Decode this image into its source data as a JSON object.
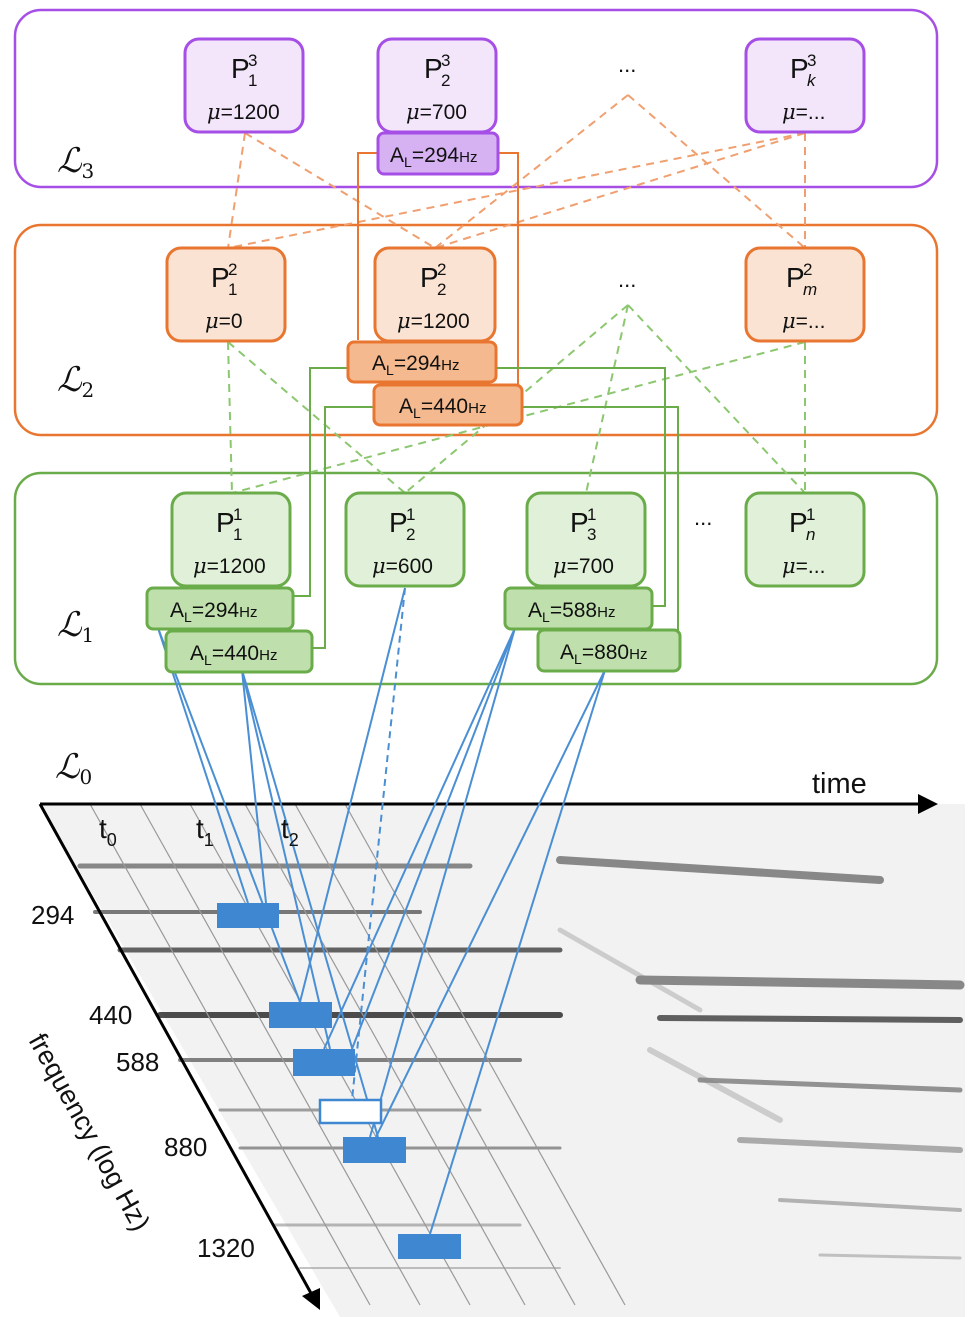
{
  "colors": {
    "purple": "#a64fe6",
    "purple_fill": "#f3e6fb",
    "purple_tag": "#d6b2f2",
    "orange": "#e97630",
    "orange_fill": "#fbe3d3",
    "orange_tag": "#f5b98f",
    "green": "#6aab4a",
    "green_fill": "#e1f0d8",
    "green_tag": "#bfe0ad",
    "blue": "#4a8fd4",
    "block": "#3f87d0"
  },
  "layers": {
    "l3": {
      "name": "ℒ",
      "index": "3",
      "patterns": [
        {
          "base": "P",
          "sub": "1",
          "sup": "3",
          "mu": "=1200"
        },
        {
          "base": "P",
          "sub": "2",
          "sup": "3",
          "mu": "=700"
        },
        {
          "base": "P",
          "sub": "k",
          "sup": "3",
          "mu": "=..."
        }
      ],
      "ellipsis": "...",
      "tags": [
        {
          "prefix": "A",
          "sub": "L",
          "value": "=294",
          "unit": "Hz"
        }
      ]
    },
    "l2": {
      "name": "ℒ",
      "index": "2",
      "patterns": [
        {
          "base": "P",
          "sub": "1",
          "sup": "2",
          "mu": "=0"
        },
        {
          "base": "P",
          "sub": "2",
          "sup": "2",
          "mu": "=1200"
        },
        {
          "base": "P",
          "sub": "m",
          "sup": "2",
          "mu": "=..."
        }
      ],
      "ellipsis": "...",
      "tags": [
        {
          "prefix": "A",
          "sub": "L",
          "value": "=294",
          "unit": "Hz"
        },
        {
          "prefix": "A",
          "sub": "L",
          "value": "=440",
          "unit": "Hz"
        }
      ]
    },
    "l1": {
      "name": "ℒ",
      "index": "1",
      "patterns": [
        {
          "base": "P",
          "sub": "1",
          "sup": "1",
          "mu": "=1200"
        },
        {
          "base": "P",
          "sub": "2",
          "sup": "1",
          "mu": "=600"
        },
        {
          "base": "P",
          "sub": "3",
          "sup": "1",
          "mu": "=700"
        },
        {
          "base": "P",
          "sub": "n",
          "sup": "1",
          "mu": "=..."
        }
      ],
      "ellipsis": "...",
      "tags": [
        {
          "prefix": "A",
          "sub": "L",
          "value": "=294",
          "unit": "Hz"
        },
        {
          "prefix": "A",
          "sub": "L",
          "value": "=440",
          "unit": "Hz"
        },
        {
          "prefix": "A",
          "sub": "L",
          "value": "=588",
          "unit": "Hz"
        },
        {
          "prefix": "A",
          "sub": "L",
          "value": "=880",
          "unit": "Hz"
        }
      ]
    },
    "l0": {
      "name": "ℒ",
      "index": "0"
    }
  },
  "mu_symbol": "μ",
  "axes": {
    "time_label": "time",
    "frequency_label": "frequency (log Hz)",
    "time_ticks": [
      {
        "base": "t",
        "sub": "0"
      },
      {
        "base": "t",
        "sub": "1"
      },
      {
        "base": "t",
        "sub": "2"
      }
    ],
    "frequency_ticks": [
      "294",
      "440",
      "588",
      "880",
      "1320"
    ]
  }
}
